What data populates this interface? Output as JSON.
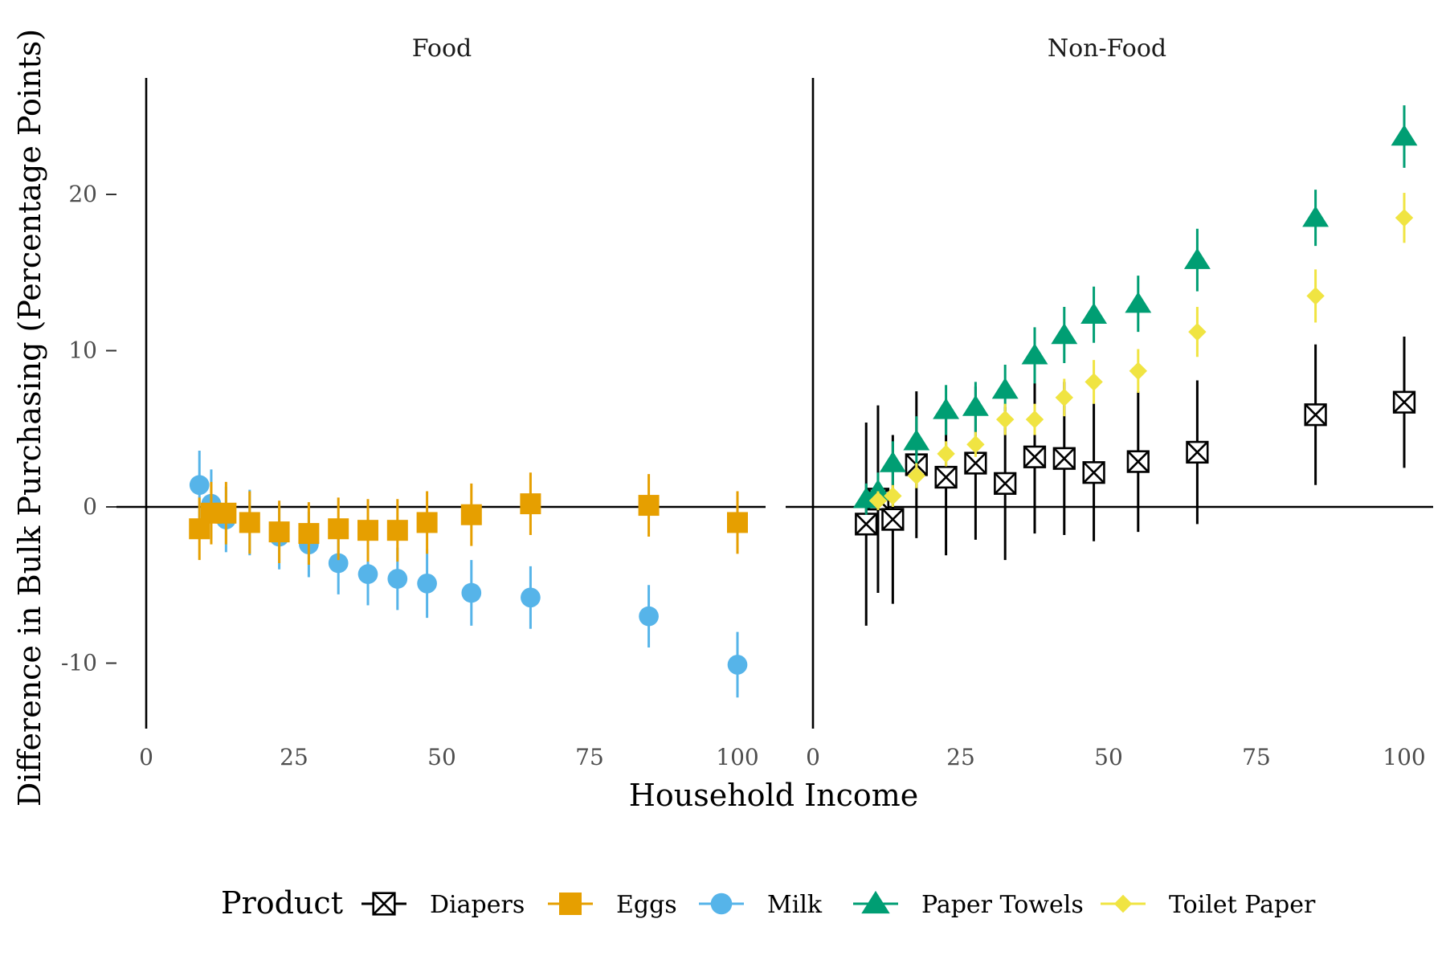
{
  "chart_data": {
    "type": "scatter",
    "xlabel": "Household Income",
    "ylabel": "Difference in Bulk Purchasing (Percentage Points)",
    "xlim": [
      0,
      105
    ],
    "ylim": [
      -14,
      27
    ],
    "x_ticks": [
      0,
      25,
      50,
      75,
      100
    ],
    "y_ticks": [
      -10,
      0,
      10,
      20
    ],
    "grid": false,
    "legend": {
      "title": "Product",
      "position": "bottom",
      "items": [
        {
          "name": "Diapers",
          "color": "#000000",
          "shape": "boxx"
        },
        {
          "name": "Eggs",
          "color": "#E69F00",
          "shape": "square"
        },
        {
          "name": "Milk",
          "color": "#56B4E9",
          "shape": "circle"
        },
        {
          "name": "Paper Towels",
          "color": "#009E73",
          "shape": "triangle"
        },
        {
          "name": "Toilet Paper",
          "color": "#F0E442",
          "shape": "diamond"
        }
      ]
    },
    "panels": [
      {
        "title": "Food",
        "series": [
          {
            "name": "Milk",
            "points": [
              [
                9,
                1.4,
                -0.8,
                3.6
              ],
              [
                11,
                0.2,
                -2.0,
                2.4
              ],
              [
                13.5,
                -0.8,
                -2.9,
                1.3
              ],
              [
                17.5,
                -1.0,
                -3.1,
                1.1
              ],
              [
                22.5,
                -1.9,
                -4.0,
                0.2
              ],
              [
                27.5,
                -2.4,
                -4.5,
                -0.3
              ],
              [
                32.5,
                -3.6,
                -5.6,
                -1.6
              ],
              [
                37.5,
                -4.3,
                -6.3,
                -2.3
              ],
              [
                42.5,
                -4.6,
                -6.6,
                -2.6
              ],
              [
                47.5,
                -4.9,
                -7.1,
                -2.7
              ],
              [
                55,
                -5.5,
                -7.6,
                -3.4
              ],
              [
                65,
                -5.8,
                -7.8,
                -3.8
              ],
              [
                85,
                -7.0,
                -9.0,
                -5.0
              ],
              [
                100,
                -10.1,
                -12.2,
                -8.0
              ]
            ]
          },
          {
            "name": "Eggs",
            "points": [
              [
                9,
                -1.4,
                -3.4,
                0.6
              ],
              [
                11,
                -0.4,
                -2.4,
                1.6
              ],
              [
                13.5,
                -0.4,
                -2.4,
                1.6
              ],
              [
                17.5,
                -1.0,
                -3.0,
                1.0
              ],
              [
                22.5,
                -1.6,
                -3.6,
                0.4
              ],
              [
                27.5,
                -1.7,
                -3.7,
                0.3
              ],
              [
                32.5,
                -1.4,
                -3.4,
                0.6
              ],
              [
                37.5,
                -1.5,
                -3.5,
                0.5
              ],
              [
                42.5,
                -1.5,
                -3.5,
                0.5
              ],
              [
                47.5,
                -1.0,
                -3.0,
                1.0
              ],
              [
                55,
                -0.5,
                -2.5,
                1.5
              ],
              [
                65,
                0.2,
                -1.8,
                2.2
              ],
              [
                85,
                0.1,
                -1.9,
                2.1
              ],
              [
                100,
                -1.0,
                -3.0,
                1.0
              ]
            ]
          }
        ]
      },
      {
        "title": "Non-Food",
        "series": [
          {
            "name": "Diapers",
            "points": [
              [
                9,
                -1.1,
                -7.6,
                5.4
              ],
              [
                11,
                0.5,
                -5.5,
                6.5
              ],
              [
                13.5,
                -0.8,
                -6.2,
                4.6
              ],
              [
                17.5,
                2.7,
                -2.0,
                7.4
              ],
              [
                22.5,
                1.9,
                -3.1,
                6.9
              ],
              [
                27.5,
                2.8,
                -2.1,
                7.7
              ],
              [
                32.5,
                1.5,
                -3.4,
                6.4
              ],
              [
                37.5,
                3.2,
                -1.7,
                8.1
              ],
              [
                42.5,
                3.1,
                -1.8,
                8.0
              ],
              [
                47.5,
                2.2,
                -2.2,
                6.6
              ],
              [
                55,
                2.9,
                -1.6,
                7.4
              ],
              [
                65,
                3.5,
                -1.1,
                8.1
              ],
              [
                85,
                5.9,
                1.4,
                10.4
              ],
              [
                100,
                6.7,
                2.5,
                10.9
              ]
            ]
          },
          {
            "name": "Paper Towels",
            "points": [
              [
                9,
                0.5,
                -0.5,
                1.5
              ],
              [
                11,
                1.0,
                -0.2,
                2.2
              ],
              [
                13.5,
                2.8,
                1.4,
                4.2
              ],
              [
                17.5,
                4.2,
                2.6,
                5.8
              ],
              [
                22.5,
                6.2,
                4.6,
                7.8
              ],
              [
                27.5,
                6.4,
                4.8,
                8.0
              ],
              [
                32.5,
                7.5,
                5.9,
                9.1
              ],
              [
                37.5,
                9.7,
                7.9,
                11.5
              ],
              [
                42.5,
                11.0,
                9.2,
                12.8
              ],
              [
                47.5,
                12.3,
                10.5,
                14.1
              ],
              [
                55,
                13.0,
                11.2,
                14.8
              ],
              [
                65,
                15.8,
                13.8,
                17.8
              ],
              [
                85,
                18.5,
                16.7,
                20.3
              ],
              [
                100,
                23.7,
                21.7,
                25.7
              ]
            ]
          },
          {
            "name": "Toilet Paper",
            "points": [
              [
                11,
                0.4,
                -0.2,
                1.0
              ],
              [
                13.5,
                0.7,
                0.0,
                1.4
              ],
              [
                17.5,
                2.0,
                1.2,
                2.8
              ],
              [
                22.5,
                3.4,
                2.6,
                4.2
              ],
              [
                27.5,
                4.0,
                3.2,
                4.8
              ],
              [
                32.5,
                5.6,
                4.6,
                6.6
              ],
              [
                37.5,
                5.6,
                4.6,
                6.6
              ],
              [
                42.5,
                7.0,
                5.8,
                8.2
              ],
              [
                47.5,
                8.0,
                6.6,
                9.4
              ],
              [
                55,
                8.7,
                7.3,
                10.1
              ],
              [
                65,
                11.2,
                9.6,
                12.8
              ],
              [
                85,
                13.5,
                11.8,
                15.2
              ],
              [
                100,
                18.5,
                16.9,
                20.1
              ]
            ]
          }
        ]
      }
    ]
  }
}
